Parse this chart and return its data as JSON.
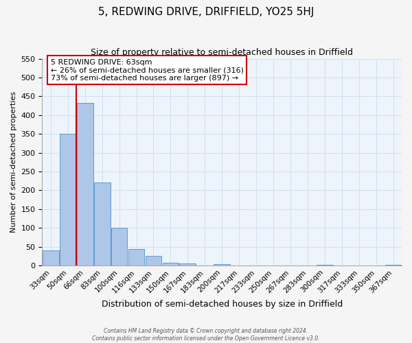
{
  "title": "5, REDWING DRIVE, DRIFFIELD, YO25 5HJ",
  "subtitle": "Size of property relative to semi-detached houses in Driffield",
  "xlabel": "Distribution of semi-detached houses by size in Driffield",
  "ylabel": "Number of semi-detached properties",
  "bar_labels": [
    "33sqm",
    "50sqm",
    "66sqm",
    "83sqm",
    "100sqm",
    "116sqm",
    "133sqm",
    "150sqm",
    "167sqm",
    "183sqm",
    "200sqm",
    "217sqm",
    "233sqm",
    "250sqm",
    "267sqm",
    "283sqm",
    "300sqm",
    "317sqm",
    "333sqm",
    "350sqm",
    "367sqm"
  ],
  "bar_values": [
    40,
    350,
    433,
    220,
    100,
    43,
    25,
    8,
    5,
    0,
    3,
    0,
    0,
    0,
    0,
    0,
    1,
    0,
    0,
    0,
    2
  ],
  "bar_color": "#aec6e8",
  "bar_edge_color": "#5b9bd5",
  "ylim": [
    0,
    550
  ],
  "yticks": [
    0,
    50,
    100,
    150,
    200,
    250,
    300,
    350,
    400,
    450,
    500,
    550
  ],
  "annotation_title": "5 REDWING DRIVE: 63sqm",
  "annotation_line1": "← 26% of semi-detached houses are smaller (316)",
  "annotation_line2": "73% of semi-detached houses are larger (897) →",
  "annotation_box_color": "#ffffff",
  "annotation_box_edge": "#cc0000",
  "red_line_color": "#cc0000",
  "grid_color": "#d0dff0",
  "bg_color": "#eef4fb",
  "footer1": "Contains HM Land Registry data © Crown copyright and database right 2024.",
  "footer2": "Contains public sector information licensed under the Open Government Licence v3.0."
}
